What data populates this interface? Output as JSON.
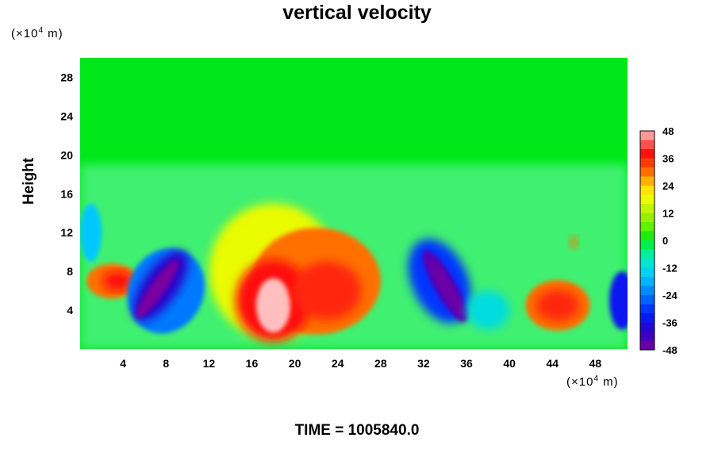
{
  "chart_data": {
    "type": "heatmap",
    "title": "vertical velocity",
    "ylabel": "Height",
    "x_unit": "(×10",
    "x_unit_exp": "4",
    "x_unit_tail": " m)",
    "y_unit": "(×10",
    "y_unit_exp": "4",
    "y_unit_tail": " m)",
    "xlim": [
      0,
      51
    ],
    "ylim": [
      0,
      30
    ],
    "x_ticks": [
      4,
      8,
      12,
      16,
      20,
      24,
      28,
      32,
      36,
      40,
      44,
      48
    ],
    "y_ticks": [
      4,
      8,
      12,
      16,
      20,
      24,
      28
    ],
    "colorbar": {
      "ticks": [
        48,
        36,
        24,
        12,
        0,
        -12,
        -24,
        -36,
        -48
      ],
      "range": [
        -48,
        48
      ]
    },
    "background_value": 0,
    "features": [
      {
        "name": "updraft-core",
        "x": 18,
        "y": 5,
        "value": 48
      },
      {
        "name": "updraft-east",
        "x": 23,
        "y": 6,
        "value": 36
      },
      {
        "name": "updraft-west",
        "x": 3,
        "y": 7,
        "value": 36
      },
      {
        "name": "updraft-right",
        "x": 44.5,
        "y": 4.5,
        "value": 36
      },
      {
        "name": "downdraft-left",
        "x": 7.5,
        "y": 7,
        "value": -48
      },
      {
        "name": "downdraft-mid",
        "x": 34,
        "y": 7,
        "value": -48
      },
      {
        "name": "downdraft-right",
        "x": 50.5,
        "y": 5,
        "value": -36
      }
    ]
  },
  "time_label": "TIME = 1005840.0"
}
